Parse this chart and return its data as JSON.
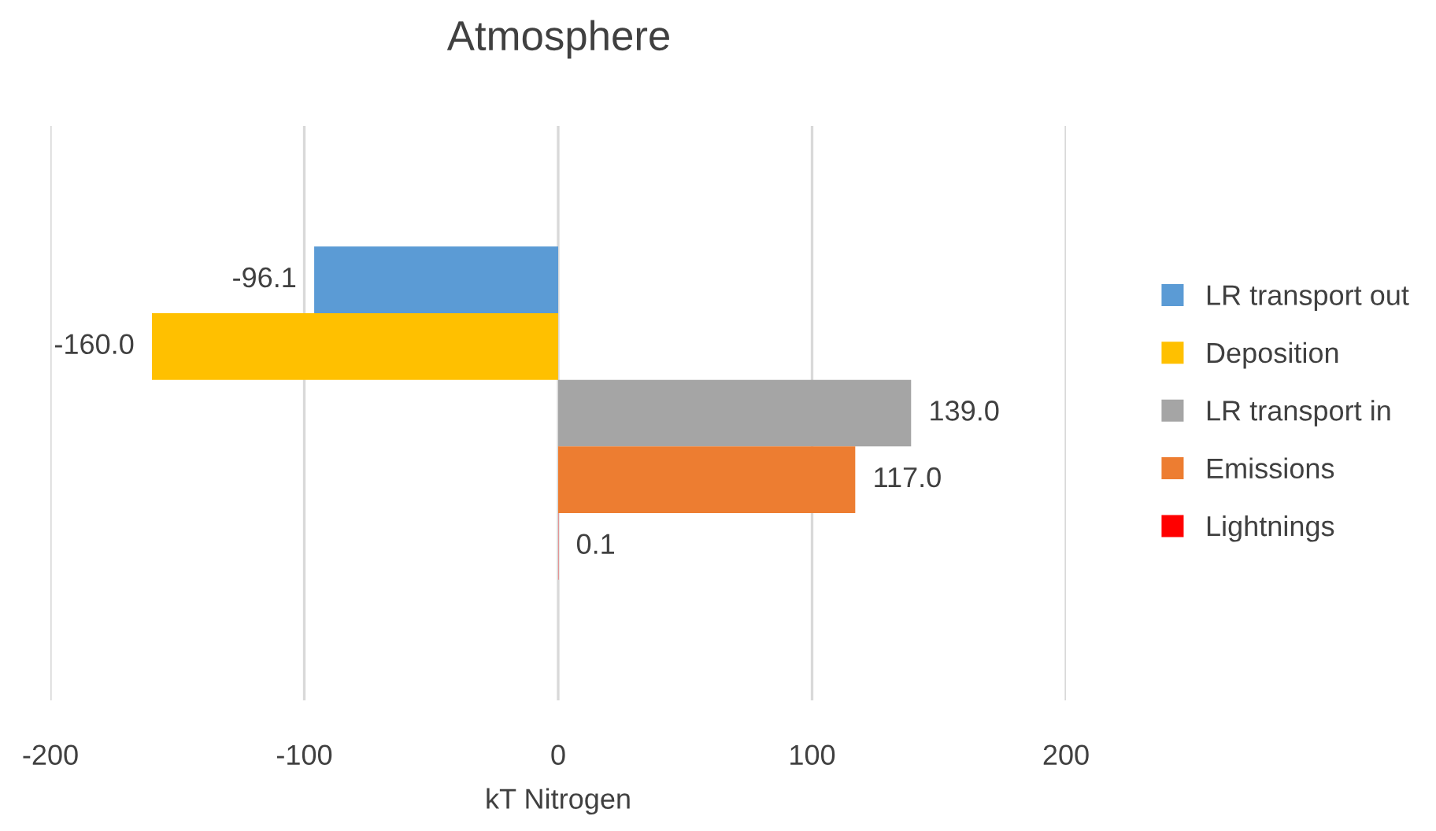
{
  "chart_data": {
    "type": "bar",
    "orientation": "horizontal",
    "title": "Atmosphere",
    "xlabel": "kT Nitrogen",
    "categories": [
      null
    ],
    "series": [
      {
        "name": "LR transport out",
        "color": "#5b9bd5",
        "values": [
          -96.1
        ],
        "value_labels": [
          "-96.1"
        ]
      },
      {
        "name": "Deposition",
        "color": "#ffc000",
        "values": [
          -160.0
        ],
        "value_labels": [
          "-160.0"
        ]
      },
      {
        "name": "LR transport in",
        "color": "#a5a5a5",
        "values": [
          139.0
        ],
        "value_labels": [
          "139.0"
        ]
      },
      {
        "name": "Emissions",
        "color": "#ed7d31",
        "values": [
          117.0
        ],
        "value_labels": [
          "117.0"
        ]
      },
      {
        "name": "Lightnings",
        "color": "#ff0000",
        "values": [
          0.1
        ],
        "value_labels": [
          "0.1"
        ]
      }
    ],
    "xlim": [
      -200,
      200
    ],
    "xticks": [
      -200,
      -100,
      0,
      100,
      200
    ],
    "grid": "x",
    "legend": "right"
  }
}
